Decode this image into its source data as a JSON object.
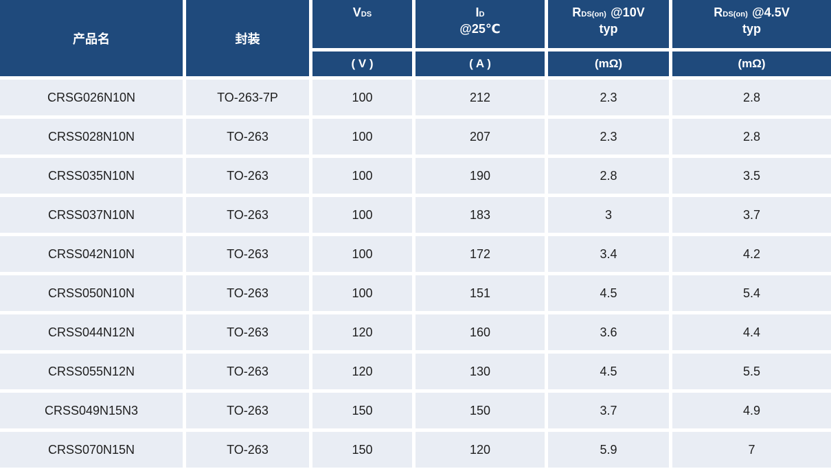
{
  "colors": {
    "header_bg": "#1F4A7C",
    "header_text": "#FFFFFF",
    "row_bg": "#E9EDF4",
    "cell_text": "#1E1E1E",
    "gap": "#FFFFFF"
  },
  "header": {
    "product_label": "产品名",
    "package_label": "封装",
    "vds": {
      "sym": "V",
      "sub": "DS",
      "unit": "( V )"
    },
    "id": {
      "sym": "I",
      "sub": "D",
      "line2": "@25℃",
      "unit": "( A )"
    },
    "rds10": {
      "sym": "R",
      "sub": "DS(on)",
      "cond": "@10V",
      "line2": "typ",
      "unit": "(mΩ)"
    },
    "rds45": {
      "sym": "R",
      "sub": "DS(on)",
      "cond": "@4.5V",
      "line2": "typ",
      "unit": "(mΩ)"
    }
  },
  "columns_order": [
    "product",
    "package",
    "vds",
    "id",
    "rds10",
    "rds45"
  ],
  "rows": [
    {
      "product": "CRSG026N10N",
      "package": "TO-263-7P",
      "vds": "100",
      "id": "212",
      "rds10": "2.3",
      "rds45": "2.8"
    },
    {
      "product": "CRSS028N10N",
      "package": "TO-263",
      "vds": "100",
      "id": "207",
      "rds10": "2.3",
      "rds45": "2.8"
    },
    {
      "product": "CRSS035N10N",
      "package": "TO-263",
      "vds": "100",
      "id": "190",
      "rds10": "2.8",
      "rds45": "3.5"
    },
    {
      "product": "CRSS037N10N",
      "package": "TO-263",
      "vds": "100",
      "id": "183",
      "rds10": "3",
      "rds45": "3.7"
    },
    {
      "product": "CRSS042N10N",
      "package": "TO-263",
      "vds": "100",
      "id": "172",
      "rds10": "3.4",
      "rds45": "4.2"
    },
    {
      "product": "CRSS050N10N",
      "package": "TO-263",
      "vds": "100",
      "id": "151",
      "rds10": "4.5",
      "rds45": "5.4"
    },
    {
      "product": "CRSS044N12N",
      "package": "TO-263",
      "vds": "120",
      "id": "160",
      "rds10": "3.6",
      "rds45": "4.4"
    },
    {
      "product": "CRSS055N12N",
      "package": "TO-263",
      "vds": "120",
      "id": "130",
      "rds10": "4.5",
      "rds45": "5.5"
    },
    {
      "product": "CRSS049N15N3",
      "package": "TO-263",
      "vds": "150",
      "id": "150",
      "rds10": "3.7",
      "rds45": "4.9"
    },
    {
      "product": "CRSS070N15N",
      "package": "TO-263",
      "vds": "150",
      "id": "120",
      "rds10": "5.9",
      "rds45": "7"
    }
  ]
}
